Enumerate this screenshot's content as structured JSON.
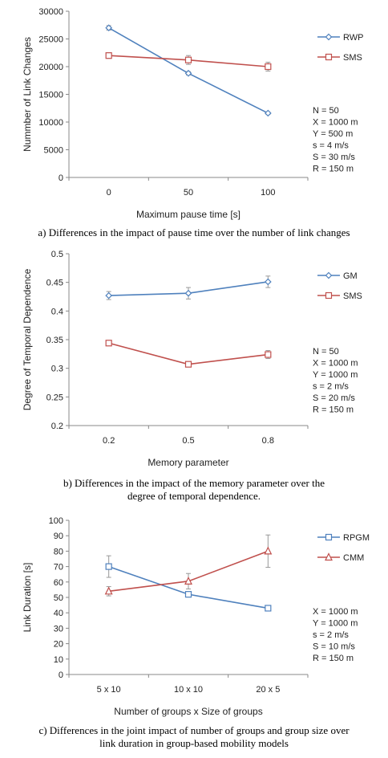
{
  "chart_data": [
    {
      "type": "line",
      "xlabel": "Maximum pause time [s]",
      "ylabel": "Nummber of Link Changes",
      "categories": [
        "0",
        "50",
        "100"
      ],
      "ylim": [
        0,
        30000
      ],
      "yticks": [
        0,
        5000,
        10000,
        15000,
        20000,
        25000,
        30000
      ],
      "series": [
        {
          "name": "RWP",
          "marker": "diamond",
          "color": "#4f81bd",
          "values": [
            27000,
            18800,
            11600
          ],
          "errors": [
            400,
            300,
            200
          ]
        },
        {
          "name": "SMS",
          "marker": "square",
          "color": "#c0504d",
          "values": [
            22000,
            21200,
            20000
          ],
          "errors": [
            500,
            800,
            800
          ]
        }
      ],
      "params": [
        "N = 50",
        "X = 1000 m",
        "Y = 500 m",
        "s = 4 m/s",
        "S = 30 m/s",
        "R = 150 m"
      ],
      "caption": "a) Differences in the impact of pause time over the number of link changes"
    },
    {
      "type": "line",
      "xlabel": "Memory parameter",
      "ylabel": "Degree of Temporal Dependence",
      "categories": [
        "0.2",
        "0.5",
        "0.8"
      ],
      "ylim": [
        0.2,
        0.5
      ],
      "yticks": [
        "0.2",
        "0.25",
        "0.3",
        "0.35",
        "0.4",
        "0.45",
        "0.5"
      ],
      "series": [
        {
          "name": "GM",
          "marker": "diamond",
          "color": "#4f81bd",
          "values": [
            0.427,
            0.431,
            0.451
          ],
          "errors": [
            0.007,
            0.01,
            0.01
          ]
        },
        {
          "name": "SMS",
          "marker": "square",
          "color": "#c0504d",
          "values": [
            0.344,
            0.307,
            0.324
          ],
          "errors": [
            0.003,
            0.004,
            0.007
          ]
        }
      ],
      "params": [
        "N = 50",
        "X = 1000 m",
        "Y = 1000 m",
        "s = 2 m/s",
        "S = 20 m/s",
        "R = 150 m"
      ],
      "caption": "b) Differences in the impact of the memory parameter over the degree of temporal dependence."
    },
    {
      "type": "line",
      "xlabel": "Number of groups x Size of groups",
      "ylabel": "Link Duration  [s]",
      "categories": [
        "5 x 10",
        "10 x 10",
        "20 x 5"
      ],
      "ylim": [
        0,
        100
      ],
      "yticks": [
        0,
        10,
        20,
        30,
        40,
        50,
        60,
        70,
        80,
        90,
        100
      ],
      "series": [
        {
          "name": "RPGM",
          "marker": "square",
          "color": "#4f81bd",
          "values": [
            70,
            52,
            43
          ],
          "errors": [
            7,
            1.5,
            1
          ]
        },
        {
          "name": "CMM",
          "marker": "triangle",
          "color": "#c0504d",
          "values": [
            54,
            60.5,
            80
          ],
          "errors": [
            3,
            5,
            10.5
          ]
        }
      ],
      "params": [
        "X = 1000 m",
        "Y = 1000 m",
        "s = 2 m/s",
        "S = 10 m/s",
        "R = 150 m"
      ],
      "caption": "c) Differences in the joint impact of number of groups and group size over link duration in group-based mobility models"
    }
  ]
}
